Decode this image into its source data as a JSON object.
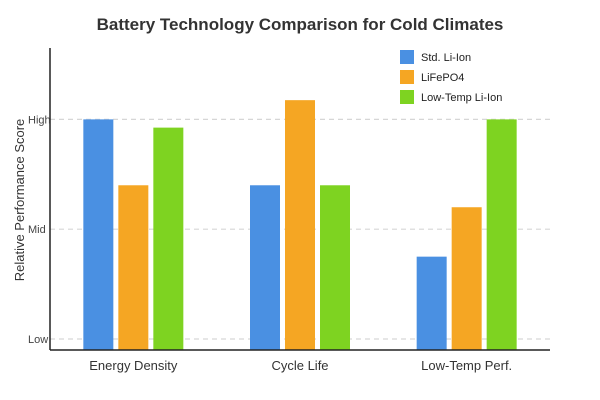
{
  "chart_data": {
    "type": "bar",
    "title": "Battery Technology Comparison for Cold Climates",
    "ylabel": "Relative Performance Score",
    "xlabel": "",
    "categories": [
      "Energy Density",
      "Cycle Life",
      "Low-Temp Perf."
    ],
    "yticks": [
      {
        "value": 1,
        "label": "Low"
      },
      {
        "value": 5,
        "label": "Mid"
      },
      {
        "value": 9,
        "label": "High"
      }
    ],
    "ylim": [
      0.6,
      11.6
    ],
    "grid": true,
    "legend_position": "top-right",
    "series": [
      {
        "name": "Std. Li-Ion",
        "color": "#4a90e2",
        "values": [
          9,
          6.6,
          4
        ]
      },
      {
        "name": "LiFePO4",
        "color": "#f5a623",
        "values": [
          6.6,
          9.7,
          5.8
        ]
      },
      {
        "name": "Low-Temp Li-Ion",
        "color": "#7ed321",
        "values": [
          8.7,
          6.6,
          9
        ]
      }
    ]
  }
}
